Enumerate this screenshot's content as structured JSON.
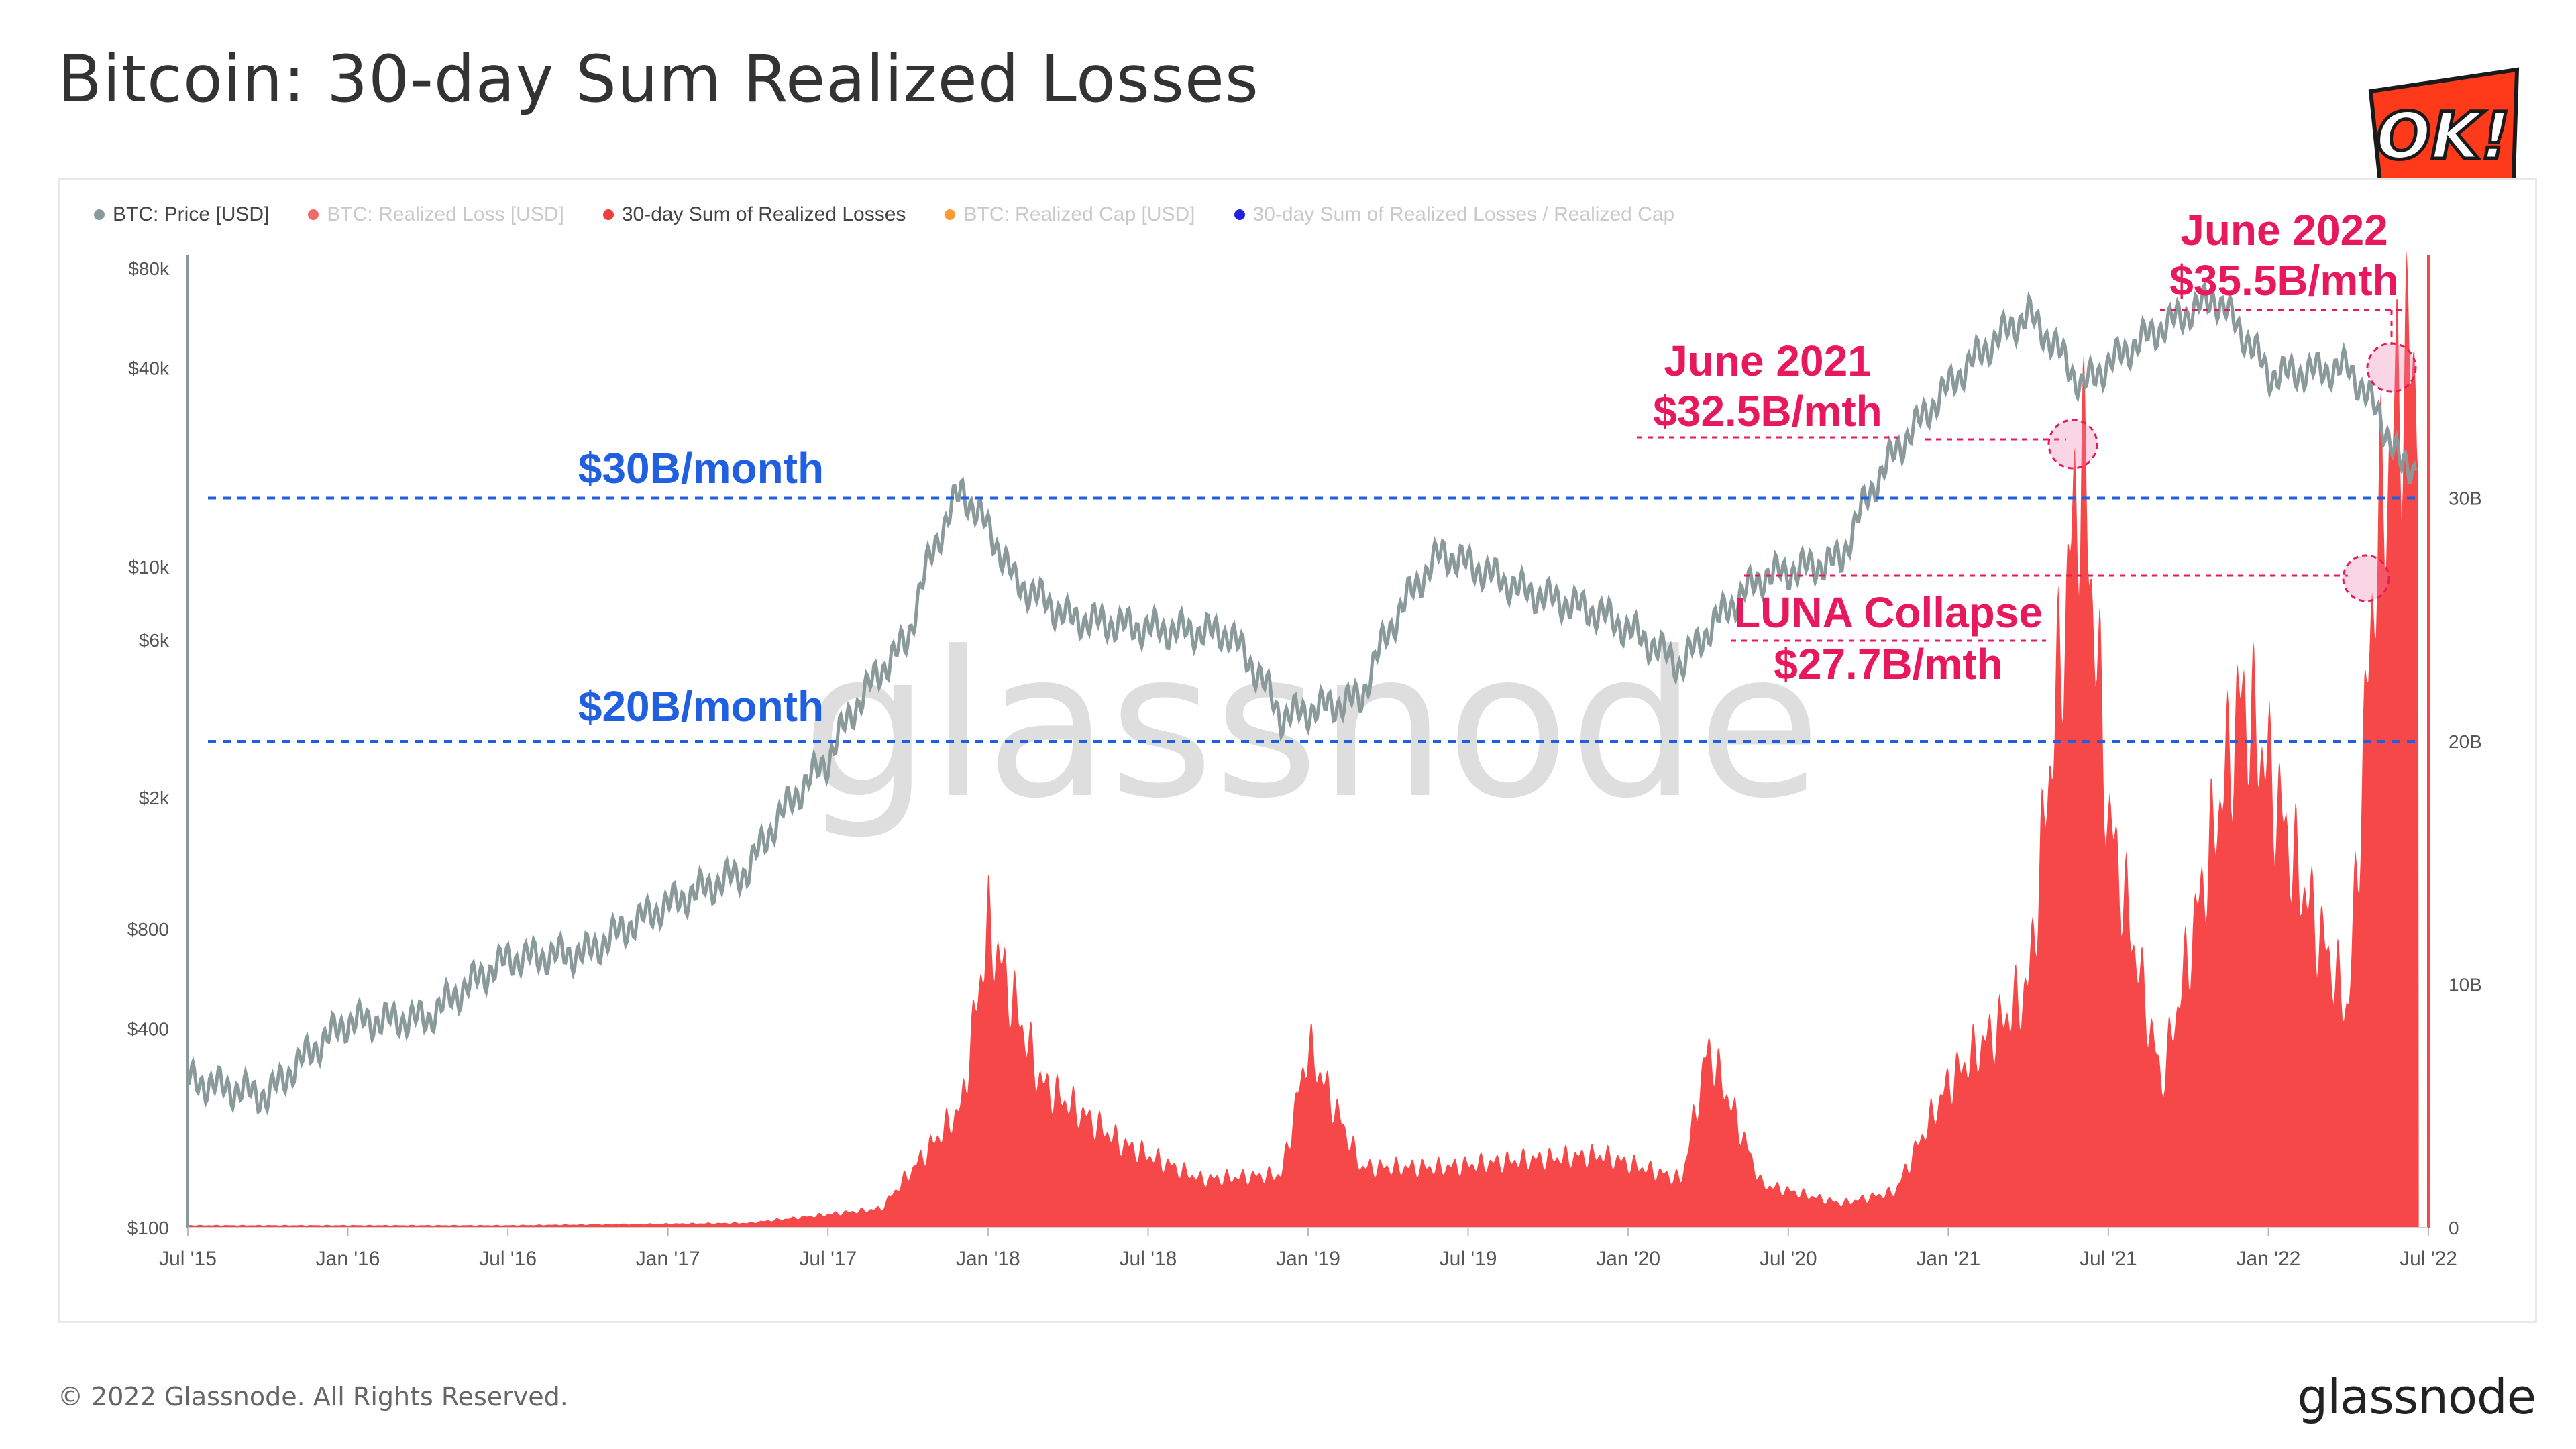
{
  "title": "Bitcoin: 30-day Sum Realized Losses",
  "footer": "© 2022 Glassnode. All Rights Reserved.",
  "brand": "glassnode",
  "watermark": "glassnode",
  "badge_text": "OK!",
  "legend": [
    {
      "label": "BTC: Price [USD]",
      "color": "#8a9a9a",
      "muted": false
    },
    {
      "label": "BTC: Realized Loss [USD]",
      "color": "#f06a6a",
      "muted": true
    },
    {
      "label": "30-day Sum of Realized Losses",
      "color": "#f03e3e",
      "muted": false
    },
    {
      "label": "BTC: Realized Cap [USD]",
      "color": "#ff9a2e",
      "muted": true
    },
    {
      "label": "30-day Sum of Realized Losses / Realized Cap",
      "color": "#2222dd",
      "muted": true
    }
  ],
  "annotations": {
    "line30": "$30B/month",
    "line20": "$20B/month",
    "june2021_title": "June 2021",
    "june2021_value": "$32.5B/mth",
    "june2022_title": "June 2022",
    "june2022_value": "$35.5B/mth",
    "luna_title": "LUNA Collapse",
    "luna_value": "$27.7B/mth"
  },
  "colors": {
    "price": "#8a9a9a",
    "losses": "#f64848",
    "accent_blue": "#1f5fe0",
    "accent_pink": "#e8185c"
  },
  "chart_data": {
    "type": "area",
    "x_ticks": [
      "Jul '15",
      "Jan '16",
      "Jul '16",
      "Jan '17",
      "Jul '17",
      "Jan '18",
      "Jul '18",
      "Jan '19",
      "Jul '19",
      "Jan '20",
      "Jul '20",
      "Jan '21",
      "Jul '21",
      "Jan '22",
      "Jul '22"
    ],
    "left_axis": {
      "label": "BTC: Price [USD]",
      "scale": "log",
      "ticks": [
        "$100",
        "$400",
        "$800",
        "$2k",
        "$6k",
        "$10k",
        "$40k",
        "$80k"
      ],
      "tick_values": [
        100,
        400,
        800,
        2000,
        6000,
        10000,
        40000,
        80000
      ]
    },
    "right_axis": {
      "label": "30-day Sum of Realized Losses",
      "scale": "linear",
      "ticks": [
        "0",
        "10B",
        "20B",
        "30B"
      ],
      "tick_values": [
        0,
        10,
        20,
        30
      ],
      "unit": "B USD",
      "ylim": [
        0,
        40
      ]
    },
    "reference_lines": [
      {
        "label": "$30B/month",
        "value": 30
      },
      {
        "label": "$20B/month",
        "value": 20
      }
    ],
    "series": [
      {
        "name": "BTC: Price [USD]",
        "x": [
          "2015-07",
          "2015-10",
          "2016-01",
          "2016-04",
          "2016-07",
          "2016-10",
          "2017-01",
          "2017-04",
          "2017-07",
          "2017-10",
          "2017-12",
          "2018-02",
          "2018-04",
          "2018-07",
          "2018-10",
          "2018-12",
          "2019-03",
          "2019-06",
          "2019-09",
          "2019-12",
          "2020-03",
          "2020-06",
          "2020-09",
          "2020-12",
          "2021-01",
          "2021-04",
          "2021-06",
          "2021-08",
          "2021-11",
          "2022-01",
          "2022-04",
          "2022-06"
        ],
        "values": [
          280,
          250,
          420,
          430,
          650,
          680,
          950,
          1200,
          2600,
          6000,
          17000,
          9000,
          7000,
          6500,
          6300,
          3500,
          4000,
          11000,
          8500,
          7200,
          5000,
          9300,
          10500,
          28000,
          35000,
          58000,
          35000,
          47000,
          65000,
          38000,
          40000,
          20000
        ]
      },
      {
        "name": "30-day Sum of Realized Losses",
        "x": [
          "2015-07",
          "2016-07",
          "2017-04",
          "2017-09",
          "2017-12",
          "2018-01",
          "2018-03",
          "2018-06",
          "2018-09",
          "2018-12",
          "2019-01",
          "2019-03",
          "2019-06",
          "2019-09",
          "2019-12",
          "2020-03",
          "2020-04",
          "2020-06",
          "2020-09",
          "2020-11",
          "2021-01",
          "2021-03",
          "2021-04",
          "2021-06",
          "2021-07",
          "2021-09",
          "2021-12",
          "2022-01",
          "2022-02",
          "2022-04",
          "2022-05",
          "2022-06"
        ],
        "values": [
          0.1,
          0.1,
          0.2,
          0.8,
          5.0,
          12.5,
          6.0,
          3.5,
          2.0,
          2.2,
          7.5,
          2.5,
          2.5,
          2.8,
          3.0,
          2.0,
          7.5,
          1.8,
          1.0,
          1.5,
          6.0,
          8.5,
          10.0,
          32.5,
          17.0,
          6.0,
          22.0,
          19.0,
          15.0,
          9.0,
          27.7,
          35.5
        ]
      }
    ]
  }
}
